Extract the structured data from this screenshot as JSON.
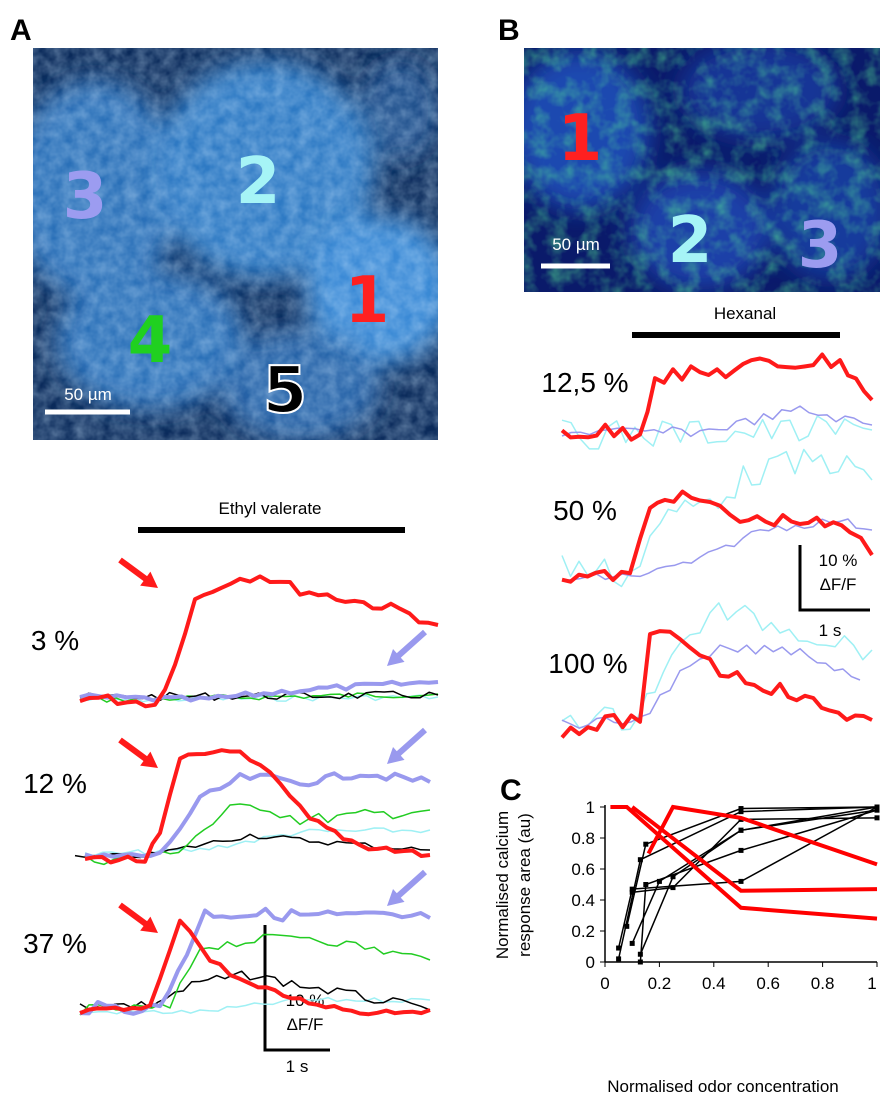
{
  "panel_a": {
    "label": "A",
    "cells": [
      "3",
      "2",
      "1",
      "4",
      "5"
    ],
    "scale_bar": "50 µm",
    "stimulus": "Ethyl valerate",
    "concentrations": [
      "3 %",
      "12 %",
      "37 %"
    ],
    "scale_y": "10 %",
    "scale_y_unit": "ΔF/F",
    "scale_x": "1 s"
  },
  "panel_b": {
    "label": "B",
    "cells": [
      "1",
      "2",
      "3"
    ],
    "scale_bar": "50 µm",
    "stimulus": "Hexanal",
    "concentrations": [
      "12,5 %",
      "50 %",
      "100 %"
    ],
    "scale_y": "10 %",
    "scale_y_unit": "ΔF/F",
    "scale_x": "1 s"
  },
  "chart_data": {
    "type": "line",
    "panel_label": "C",
    "x_label": "Normalised odor concentration",
    "y_label": [
      "Normalised calcium",
      "response area (au)"
    ],
    "xlim": [
      0,
      1
    ],
    "ylim": [
      0,
      1
    ],
    "xticks": [
      0,
      0.2,
      0.4,
      0.6,
      0.8,
      1
    ],
    "yticks": [
      0,
      0.2,
      0.4,
      0.6,
      0.8,
      1
    ],
    "series": [
      {
        "color": "#000000",
        "x": [
          0.05,
          0.1,
          0.5,
          1
        ],
        "values": [
          0.09,
          0.47,
          0.52,
          1
        ]
      },
      {
        "color": "#000000",
        "x": [
          0.05,
          0.13,
          0.5,
          1
        ],
        "values": [
          0.02,
          0.66,
          0.97,
          1
        ]
      },
      {
        "color": "#000000",
        "x": [
          0.08,
          0.15,
          0.5,
          1
        ],
        "values": [
          0.23,
          0.76,
          0.99,
          1
        ]
      },
      {
        "color": "#000000",
        "x": [
          0.1,
          0.2,
          0.5,
          1
        ],
        "values": [
          0.12,
          0.52,
          0.85,
          1
        ]
      },
      {
        "color": "#000000",
        "x": [
          0.13,
          0.15,
          0.5,
          1
        ],
        "values": [
          0,
          0.5,
          0.72,
          0.98
        ]
      },
      {
        "color": "#000000",
        "x": [
          0.13,
          0.25,
          0.5,
          1
        ],
        "values": [
          0.05,
          0.55,
          0.85,
          0.98
        ]
      },
      {
        "color": "#000000",
        "x": [
          0.1,
          0.25,
          0.5,
          1
        ],
        "values": [
          0.45,
          0.48,
          0.92,
          0.93
        ]
      },
      {
        "color": "#ff0000",
        "x": [
          0.02,
          0.08,
          0.5,
          1
        ],
        "values": [
          1,
          1,
          0.35,
          0.28
        ]
      },
      {
        "color": "#ff0000",
        "x": [
          0.1,
          0.5,
          1
        ],
        "values": [
          1,
          0.46,
          0.47
        ]
      },
      {
        "color": "#ff0000",
        "x": [
          0.16,
          0.25,
          0.5,
          1
        ],
        "values": [
          0.7,
          1,
          0.93,
          0.63
        ]
      }
    ]
  }
}
